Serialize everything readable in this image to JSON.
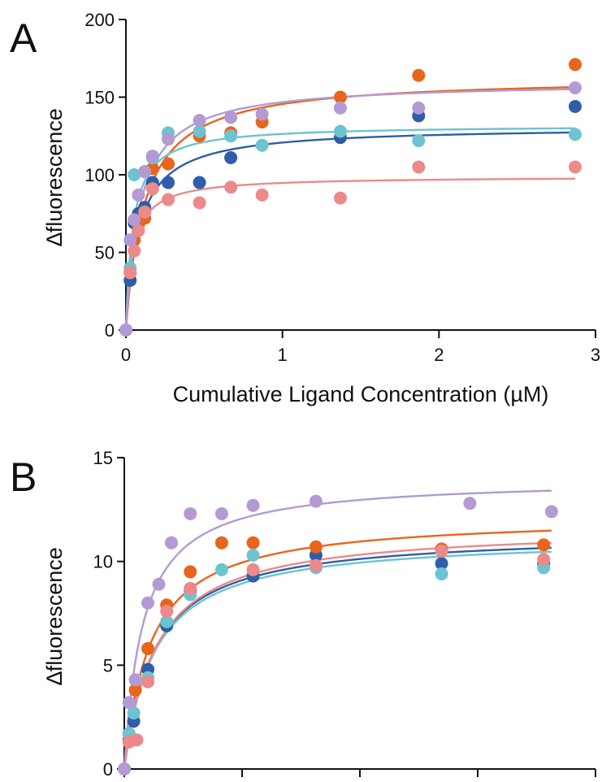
{
  "colors": {
    "dark_blue": "#2f5ea8",
    "orange": "#e8651c",
    "light_blue": "#6cc4d0",
    "pink": "#ec8a8a",
    "purple": "#b39ad3"
  },
  "chart_data": [
    {
      "panel_label": "A",
      "type": "scatter",
      "xlabel": "Cumulative Ligand Concentration (µM)",
      "ylabel": "∆fluorescence",
      "xlim": [
        0,
        3
      ],
      "ylim": [
        0,
        200
      ],
      "x_ticks": [
        0,
        1,
        2,
        3
      ],
      "y_ticks": [
        0,
        50,
        100,
        150,
        200
      ],
      "x_tick_labels": [
        "0",
        "1",
        "2",
        "3"
      ],
      "y_tick_labels": [
        "0",
        "50",
        "100",
        "150",
        "200"
      ],
      "grid": false,
      "fit_curves": true,
      "series": [
        {
          "color_key": "dark_blue",
          "x": [
            0,
            0.027,
            0.053,
            0.08,
            0.12,
            0.17,
            0.27,
            0.47,
            0.67,
            1.37,
            1.87,
            2.87
          ],
          "y": [
            0,
            32,
            69,
            75,
            79,
            95,
            95,
            95,
            111,
            124,
            138,
            144
          ],
          "fit": {
            "bmax": 131,
            "kd": 0.085
          }
        },
        {
          "color_key": "orange",
          "x": [
            0,
            0.027,
            0.053,
            0.08,
            0.12,
            0.17,
            0.27,
            0.47,
            0.67,
            0.87,
            1.37,
            1.87,
            2.87
          ],
          "y": [
            0,
            37,
            58,
            68,
            72,
            104,
            107,
            125,
            127,
            134,
            150,
            164,
            171
          ],
          "fit": {
            "bmax": 163,
            "kd": 0.12
          }
        },
        {
          "color_key": "light_blue",
          "x": [
            0,
            0.027,
            0.053,
            0.12,
            0.17,
            0.27,
            0.47,
            0.67,
            0.87,
            1.37,
            1.87,
            2.87
          ],
          "y": [
            0,
            40,
            100,
            102,
            111,
            127,
            128,
            125,
            119,
            128,
            122,
            126
          ],
          "fit": {
            "bmax": 132,
            "kd": 0.045
          }
        },
        {
          "color_key": "pink",
          "x": [
            0,
            0.027,
            0.053,
            0.08,
            0.12,
            0.17,
            0.27,
            0.47,
            0.67,
            0.87,
            1.37,
            1.87,
            2.87
          ],
          "y": [
            0,
            37,
            51,
            64,
            76,
            91,
            84,
            82,
            92,
            87,
            85,
            105,
            105
          ],
          "fit": {
            "bmax": 99,
            "kd": 0.045
          }
        },
        {
          "color_key": "purple",
          "x": [
            0,
            0.027,
            0.053,
            0.08,
            0.12,
            0.17,
            0.27,
            0.47,
            0.67,
            0.87,
            1.37,
            1.87,
            2.87
          ],
          "y": [
            0,
            58,
            71,
            87,
            102,
            112,
            123,
            135,
            137,
            139,
            143,
            143,
            156
          ],
          "fit": {
            "bmax": 160,
            "kd": 0.09
          }
        }
      ]
    },
    {
      "panel_label": "B",
      "type": "scatter",
      "xlabel": "",
      "ylabel": "∆fluorescence",
      "xlim": [
        0,
        3
      ],
      "ylim": [
        0,
        15
      ],
      "x_ticks": [
        0,
        0.75,
        1.5,
        2.25,
        3
      ],
      "y_ticks": [
        0,
        5,
        10,
        15
      ],
      "y_tick_labels": [
        "0",
        "5",
        "10",
        "15"
      ],
      "grid": false,
      "fit_curves": true,
      "series": [
        {
          "color_key": "dark_blue",
          "x": [
            0,
            0.03,
            0.06,
            0.15,
            0.27,
            0.42,
            0.82,
            1.22,
            2.02,
            2.67
          ],
          "y": [
            0,
            1.4,
            2.3,
            4.8,
            6.9,
            8.6,
            9.3,
            10.3,
            9.9,
            9.9
          ],
          "fit": {
            "bmax": 11.4,
            "kd": 0.19
          }
        },
        {
          "color_key": "orange",
          "x": [
            0,
            0.03,
            0.07,
            0.15,
            0.27,
            0.42,
            0.62,
            0.82,
            1.22,
            2.02,
            2.67
          ],
          "y": [
            0,
            1.7,
            3.8,
            5.8,
            7.9,
            9.5,
            10.9,
            10.9,
            10.7,
            10.6,
            10.8
          ],
          "fit": {
            "bmax": 12.2,
            "kd": 0.17
          }
        },
        {
          "color_key": "light_blue",
          "x": [
            0,
            0.03,
            0.06,
            0.15,
            0.27,
            0.42,
            0.62,
            0.82,
            1.22,
            2.02,
            2.67
          ],
          "y": [
            0,
            1.7,
            2.7,
            4.4,
            7.1,
            8.4,
            9.6,
            10.3,
            9.7,
            9.4,
            9.7
          ],
          "fit": {
            "bmax": 11.2,
            "kd": 0.19
          }
        },
        {
          "color_key": "pink",
          "x": [
            0,
            0.03,
            0.08,
            0.15,
            0.27,
            0.42,
            0.82,
            1.22,
            2.02,
            2.67
          ],
          "y": [
            0,
            1.3,
            1.4,
            4.2,
            7.6,
            8.7,
            9.6,
            9.8,
            10.5,
            10.1
          ],
          "fit": {
            "bmax": 11.7,
            "kd": 0.2
          }
        },
        {
          "color_key": "purple",
          "x": [
            0,
            0.03,
            0.07,
            0.15,
            0.22,
            0.3,
            0.42,
            0.62,
            0.82,
            1.22,
            2.2,
            2.72
          ],
          "y": [
            0,
            3.2,
            4.3,
            8.0,
            8.9,
            10.9,
            12.3,
            12.3,
            12.7,
            12.9,
            12.8,
            12.4
          ],
          "fit": {
            "bmax": 14.0,
            "kd": 0.12
          }
        }
      ]
    }
  ]
}
